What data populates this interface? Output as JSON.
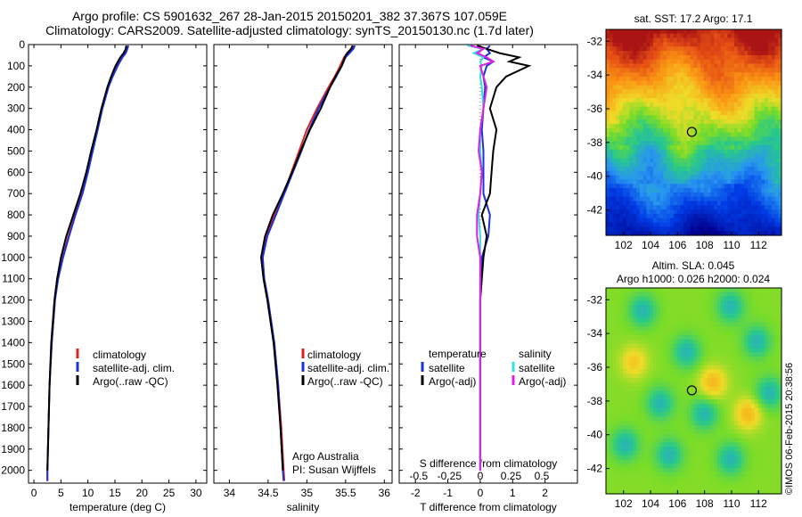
{
  "header": {
    "title_line1": "Argo profile: CS 5901632_267 28-Jan-2015 20150201_382 37.367S 107.059E",
    "title_line2": "Climatology: CARS2009. Satellite-adjusted climatology: synTS_20150130.nc (1.7d later)"
  },
  "colors": {
    "climatology": "#e02020",
    "satellite": "#1a33d9",
    "argo": "#000000",
    "sal_satellite": "#33e0e0",
    "sal_argo": "#e020e0"
  },
  "chart_data": [
    {
      "type": "line",
      "name": "temperature",
      "xlabel": "temperature (deg C)",
      "ylabel": "",
      "xlim": [
        -1,
        32
      ],
      "ylim": [
        2060,
        0
      ],
      "xticks": [
        0,
        5,
        10,
        15,
        20,
        25,
        30
      ],
      "yticks": [
        0,
        100,
        200,
        300,
        400,
        500,
        600,
        700,
        800,
        900,
        1000,
        1100,
        1200,
        1300,
        1400,
        1500,
        1600,
        1700,
        1800,
        1900,
        2000
      ],
      "depth": [
        5,
        20,
        40,
        60,
        100,
        150,
        200,
        300,
        400,
        500,
        600,
        700,
        800,
        900,
        1000,
        1100,
        1200,
        1400,
        1600,
        1800,
        2000,
        2050
      ],
      "series": [
        {
          "name": "climatology",
          "values": [
            17.2,
            17.0,
            16.7,
            16.1,
            15.2,
            14.4,
            13.7,
            12.6,
            11.7,
            10.8,
            9.9,
            8.9,
            7.6,
            6.4,
            5.3,
            4.4,
            3.9,
            3.3,
            2.9,
            2.7,
            2.5,
            2.5
          ]
        },
        {
          "name": "satellite-adj. clim.",
          "values": [
            17.5,
            17.3,
            17.0,
            16.4,
            15.5,
            14.6,
            13.8,
            12.7,
            11.8,
            10.9,
            10.0,
            9.0,
            7.7,
            6.5,
            5.4,
            4.5,
            3.9,
            3.3,
            2.9,
            2.7,
            2.5,
            2.5
          ]
        },
        {
          "name": "Argo(..raw -QC)",
          "values": [
            17.1,
            17.0,
            16.6,
            16.0,
            15.1,
            14.3,
            13.6,
            12.5,
            11.6,
            10.6,
            9.7,
            8.6,
            7.3,
            6.0,
            5.0,
            4.3,
            3.8,
            3.2,
            2.9,
            2.7,
            2.5,
            null
          ]
        }
      ],
      "legend": [
        "climatology",
        "satellite-adj. clim.",
        "Argo(..raw -QC)"
      ],
      "legend_position": "bottom-center"
    },
    {
      "type": "line",
      "name": "salinity",
      "xlabel": "salinity",
      "xlim": [
        33.8,
        36.1
      ],
      "ylim": [
        2060,
        0
      ],
      "xticks": [
        34,
        34.5,
        35,
        35.5,
        36
      ],
      "depth": [
        5,
        20,
        40,
        60,
        100,
        150,
        200,
        300,
        400,
        500,
        600,
        700,
        800,
        900,
        1000,
        1100,
        1200,
        1400,
        1600,
        1800,
        2000,
        2050
      ],
      "series": [
        {
          "name": "climatology",
          "values": [
            35.6,
            35.58,
            35.52,
            35.48,
            35.43,
            35.36,
            35.28,
            35.13,
            35.0,
            34.9,
            34.8,
            34.7,
            34.58,
            34.48,
            34.43,
            34.45,
            34.5,
            34.58,
            34.63,
            34.67,
            34.7,
            34.71
          ]
        },
        {
          "name": "satellite-adj. clim.",
          "values": [
            35.62,
            35.6,
            35.55,
            35.5,
            35.45,
            35.38,
            35.3,
            35.15,
            35.03,
            34.93,
            34.82,
            34.71,
            34.6,
            34.49,
            34.43,
            34.45,
            34.5,
            34.58,
            34.63,
            34.66,
            34.69,
            34.7
          ]
        },
        {
          "name": "Argo(..raw -QC)",
          "values": [
            35.59,
            35.57,
            35.52,
            35.49,
            35.45,
            35.37,
            35.3,
            35.18,
            35.04,
            34.92,
            34.81,
            34.69,
            34.56,
            34.46,
            34.41,
            34.44,
            34.49,
            34.57,
            34.62,
            34.66,
            34.69,
            null
          ]
        }
      ],
      "legend": [
        "climatology",
        "satellite-adj. clim.",
        "Argo(..raw -QC)"
      ],
      "annotation_line1": "Argo Australia",
      "annotation_line2": "PI: Susan Wijffels"
    },
    {
      "type": "line",
      "name": "differences",
      "xlabel": "T difference from climatology",
      "xlabel_top": "S difference from climatology",
      "xlim": [
        -2.5,
        3.0
      ],
      "ylim": [
        2060,
        0
      ],
      "xticks_bottom": [
        -2,
        -1,
        0,
        1,
        2
      ],
      "xticks_top_labels": [
        "-0.5",
        "-0.25",
        "0",
        "0.25",
        "0.5"
      ],
      "depth": [
        5,
        20,
        40,
        60,
        80,
        100,
        150,
        200,
        300,
        400,
        500,
        600,
        700,
        800,
        900,
        1000,
        1100,
        1200,
        1400,
        1600,
        1800,
        2000
      ],
      "series": [
        {
          "name": "temperature satellite",
          "values": [
            0.3,
            0.2,
            0.3,
            0.1,
            0.4,
            0.2,
            0.1,
            0.15,
            0.1,
            0.05,
            0.1,
            0.1,
            0.1,
            0.3,
            0.25,
            0.05,
            0.0,
            0.0,
            0.0,
            0.0,
            0.0,
            0.0
          ]
        },
        {
          "name": "temperature Argo(-adj)",
          "values": [
            -0.1,
            0.2,
            0.6,
            1.2,
            0.9,
            1.5,
            0.8,
            0.5,
            0.3,
            0.5,
            0.4,
            0.35,
            0.3,
            0.05,
            0.2,
            0.1,
            0.05,
            0.0,
            0.0,
            0.0,
            0.0,
            0.0
          ]
        },
        {
          "name": "salinity satellite",
          "values": [
            -0.4,
            0.1,
            -0.2,
            0.1,
            0.0,
            0.05,
            0.0,
            0.05,
            0.1,
            0.0,
            0.0,
            0.05,
            0.0,
            -0.05,
            0.0,
            0.0,
            0.0,
            0.0,
            0.0,
            0.0,
            0.0,
            0.0
          ]
        },
        {
          "name": "salinity Argo(-adj)",
          "values": [
            -0.3,
            0.1,
            -0.1,
            0.2,
            0.4,
            0.0,
            0.1,
            0.2,
            0.1,
            0.0,
            -0.05,
            0.05,
            0.0,
            -0.1,
            -0.1,
            0.0,
            0.0,
            0.0,
            0.0,
            0.0,
            0.0,
            0.0
          ]
        }
      ],
      "legend_temperature_title": "temperature",
      "legend_salinity_title": "salinity",
      "legend": [
        "satellite",
        "Argo(-adj)",
        "satellite",
        "Argo(-adj)"
      ]
    },
    {
      "type": "heatmap",
      "name": "sst_map",
      "title": "sat. SST: 17.2 Argo: 17.1",
      "xticks": [
        102,
        104,
        106,
        108,
        110,
        112
      ],
      "yticks": [
        -32,
        -34,
        -36,
        -38,
        -40,
        -42
      ],
      "xlim": [
        100.7,
        113.7
      ],
      "ylim": [
        -43.5,
        -31.3
      ],
      "argo_position": [
        107.06,
        -37.37
      ]
    },
    {
      "type": "heatmap",
      "name": "sla_map",
      "title_line1": "Altim. SLA: 0.045",
      "title_line2": "Argo h1000: 0.026 h2000: 0.024",
      "xticks": [
        102,
        104,
        106,
        108,
        110,
        112
      ],
      "yticks": [
        -32,
        -34,
        -36,
        -38,
        -40,
        -42
      ],
      "xlim": [
        100.7,
        113.7
      ],
      "ylim": [
        -43.5,
        -31.3
      ],
      "argo_position": [
        107.06,
        -37.37
      ]
    }
  ],
  "side_stamp": "©IMOS 06-Feb-2015 20:38:56"
}
